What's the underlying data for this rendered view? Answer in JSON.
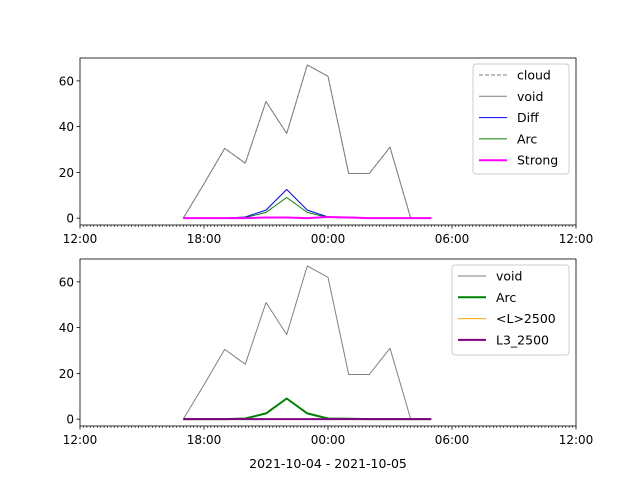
{
  "xlabel": "2021-10-04 - 2021-10-05",
  "chart_data": [
    {
      "type": "line",
      "x_ticks": [
        "12:00",
        "18:00",
        "00:00",
        "06:00",
        "12:00"
      ],
      "y_ticks": [
        "0",
        "20",
        "40",
        "60"
      ],
      "xlim_hours": [
        12,
        36
      ],
      "ylim": [
        -3,
        70
      ],
      "legend_position": "top-right",
      "x_hours": [
        17,
        18,
        19,
        20,
        21,
        22,
        23,
        24,
        25,
        26,
        27,
        28,
        29
      ],
      "series": [
        {
          "name": "cloud",
          "color": "#808080",
          "style": "dashed",
          "width": 1,
          "values": [
            0,
            15,
            30.5,
            24,
            51,
            37,
            67,
            62,
            19.5,
            19.5,
            31,
            0,
            0
          ]
        },
        {
          "name": "void",
          "color": "#808080",
          "style": "solid",
          "width": 1,
          "values": [
            0,
            15,
            30.5,
            24,
            51,
            37,
            67,
            62,
            19.5,
            19.5,
            31,
            0,
            0
          ]
        },
        {
          "name": "Diff",
          "color": "#0000ff",
          "style": "solid",
          "width": 1,
          "values": [
            0,
            0,
            0,
            0.5,
            3.5,
            12.5,
            3.5,
            0.5,
            0.5,
            0,
            0,
            0,
            0
          ]
        },
        {
          "name": "Arc",
          "color": "#008000",
          "style": "solid",
          "width": 1,
          "values": [
            0,
            0,
            0,
            0.3,
            2.5,
            9,
            2.5,
            0.3,
            0.2,
            0,
            0,
            0,
            0
          ]
        },
        {
          "name": "Strong",
          "color": "#ff00ff",
          "style": "solid",
          "width": 2,
          "values": [
            0,
            0,
            0,
            0,
            0.3,
            0.3,
            0,
            0.5,
            0.3,
            0,
            0,
            0,
            0
          ]
        }
      ]
    },
    {
      "type": "line",
      "x_ticks": [
        "12:00",
        "18:00",
        "00:00",
        "06:00",
        "12:00"
      ],
      "y_ticks": [
        "0",
        "20",
        "40",
        "60"
      ],
      "xlim_hours": [
        12,
        36
      ],
      "ylim": [
        -3,
        70
      ],
      "legend_position": "top-right",
      "x_hours": [
        17,
        18,
        19,
        20,
        21,
        22,
        23,
        24,
        25,
        26,
        27,
        28,
        29
      ],
      "series": [
        {
          "name": "void",
          "color": "#808080",
          "style": "solid",
          "width": 1,
          "values": [
            0,
            15,
            30.5,
            24,
            51,
            37,
            67,
            62,
            19.5,
            19.5,
            31,
            0,
            0
          ]
        },
        {
          "name": "Arc",
          "color": "#008000",
          "style": "solid",
          "width": 2,
          "values": [
            0,
            0,
            0,
            0.3,
            2.5,
            9,
            2.5,
            0.3,
            0.2,
            0,
            0,
            0,
            0
          ]
        },
        {
          "name": "<L>2500",
          "color": "#ffa500",
          "style": "solid",
          "width": 1,
          "values": [
            0,
            0,
            0,
            0,
            0,
            0,
            0,
            0,
            0,
            0,
            0,
            0,
            0
          ]
        },
        {
          "name": "L3_2500",
          "color": "#800080",
          "style": "solid",
          "width": 2,
          "values": [
            0,
            0,
            0,
            0,
            0,
            0,
            0,
            0,
            0,
            0,
            0,
            0,
            0
          ]
        }
      ]
    }
  ]
}
